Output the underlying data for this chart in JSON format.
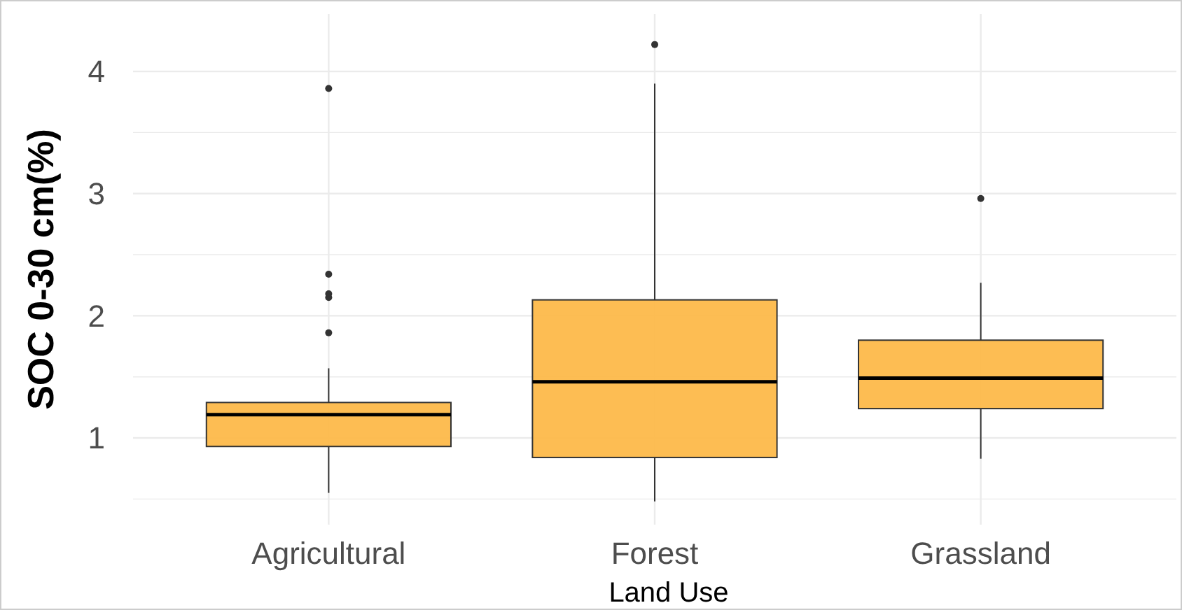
{
  "chart_data": {
    "type": "box",
    "xlabel": "Land Use",
    "ylabel": "SOC 0-30 cm(%)",
    "categories": [
      "Agricultural",
      "Forest",
      "Grassland"
    ],
    "boxes": [
      {
        "low": 0.55,
        "q1": 0.93,
        "median": 1.19,
        "q3": 1.29,
        "high": 1.57,
        "outliers": [
          1.86,
          2.15,
          2.18,
          2.34,
          3.86
        ]
      },
      {
        "low": 0.48,
        "q1": 0.84,
        "median": 1.46,
        "q3": 2.13,
        "high": 3.9,
        "outliers": [
          4.22
        ]
      },
      {
        "low": 0.83,
        "q1": 1.24,
        "median": 1.49,
        "q3": 1.8,
        "high": 2.27,
        "outliers": [
          2.96
        ]
      }
    ],
    "color": "#fdb94a",
    "ylim": [
      0.29,
      4.47
    ],
    "yticks": [
      {
        "value": 0.5,
        "label": null
      },
      1,
      {
        "value": 1.5,
        "label": null
      },
      2,
      {
        "value": 2.5,
        "label": null
      },
      3,
      {
        "value": 3.5,
        "label": null
      },
      4
    ],
    "grid": true
  }
}
